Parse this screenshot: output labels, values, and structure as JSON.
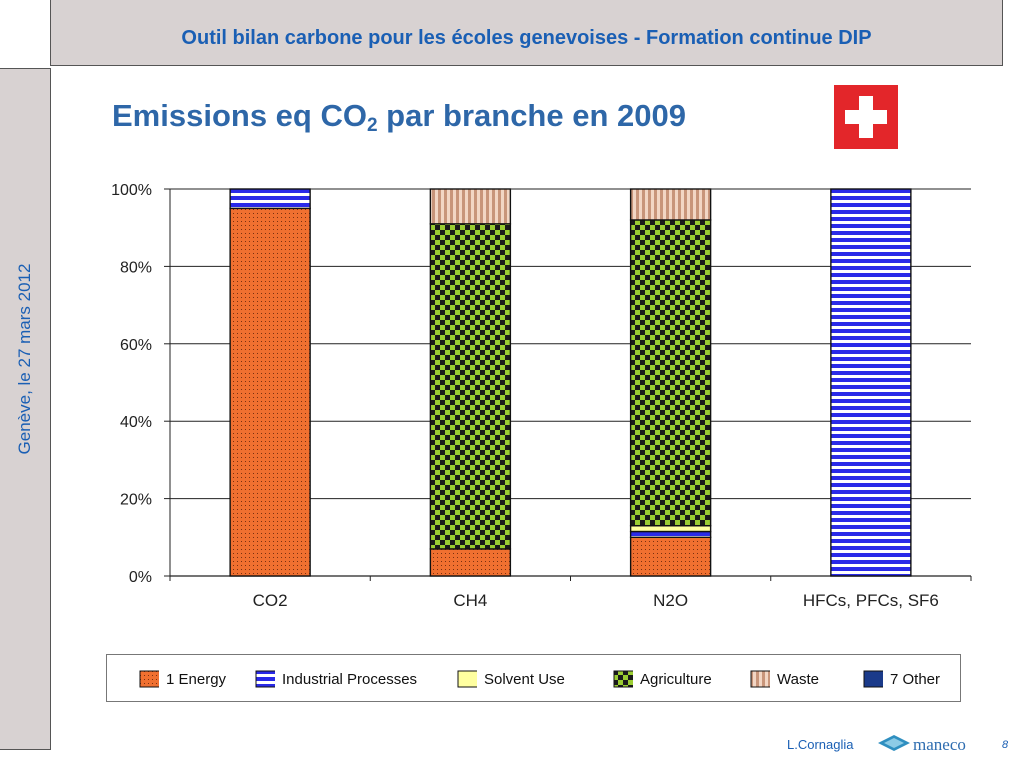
{
  "header": {
    "title": "Outil bilan carbone pour les écoles genevoises -  Formation continue DIP"
  },
  "sidebar": {
    "text": "Genève, le 27 mars 2012"
  },
  "slide": {
    "title_main": "Emissions eq CO",
    "title_sub": "2",
    "title_rest": " par branche en 2009"
  },
  "flag": {
    "icon": "swiss-flag-icon",
    "colors": {
      "red": "#e3262a",
      "white": "#ffffff"
    }
  },
  "footer": {
    "author": "L.Cornaglia",
    "logo_text": "maneco",
    "page_number": "8"
  },
  "legend": {
    "items": [
      {
        "key": "energy",
        "label": "1 Energy"
      },
      {
        "key": "industrial",
        "label": "Industrial Processes"
      },
      {
        "key": "solvent",
        "label": "Solvent Use"
      },
      {
        "key": "agriculture",
        "label": "Agriculture"
      },
      {
        "key": "waste",
        "label": "Waste"
      },
      {
        "key": "other",
        "label": "7 Other"
      }
    ]
  },
  "chart_data": {
    "type": "bar",
    "stacked": true,
    "categories": [
      "CO2",
      "CH4",
      "N2O",
      "HFCs, PFCs, SF6"
    ],
    "ylim": [
      0,
      100
    ],
    "yticks": [
      "0%",
      "20%",
      "40%",
      "60%",
      "80%",
      "100%"
    ],
    "ytick_values": [
      0,
      20,
      40,
      60,
      80,
      100
    ],
    "grid": true,
    "legend_position": "bottom",
    "series": [
      {
        "key": "energy",
        "name": "1 Energy",
        "color": "#f07030",
        "values": [
          95,
          7,
          10,
          0
        ]
      },
      {
        "key": "industrial",
        "name": "Industrial Processes",
        "color": "#2a2ae8",
        "values": [
          5,
          0,
          1.5,
          100
        ]
      },
      {
        "key": "solvent",
        "name": "Solvent Use",
        "color": "#ffffa0",
        "values": [
          0,
          0,
          1.5,
          0
        ]
      },
      {
        "key": "agriculture",
        "name": "Agriculture",
        "color": "#9acd32",
        "values": [
          0,
          84,
          79,
          0
        ]
      },
      {
        "key": "waste",
        "name": "Waste",
        "color": "#e8b8a0",
        "values": [
          0,
          9,
          8,
          0
        ]
      },
      {
        "key": "other",
        "name": "7 Other",
        "color": "#1a3a8a",
        "values": [
          0,
          0,
          0,
          0
        ]
      }
    ]
  }
}
